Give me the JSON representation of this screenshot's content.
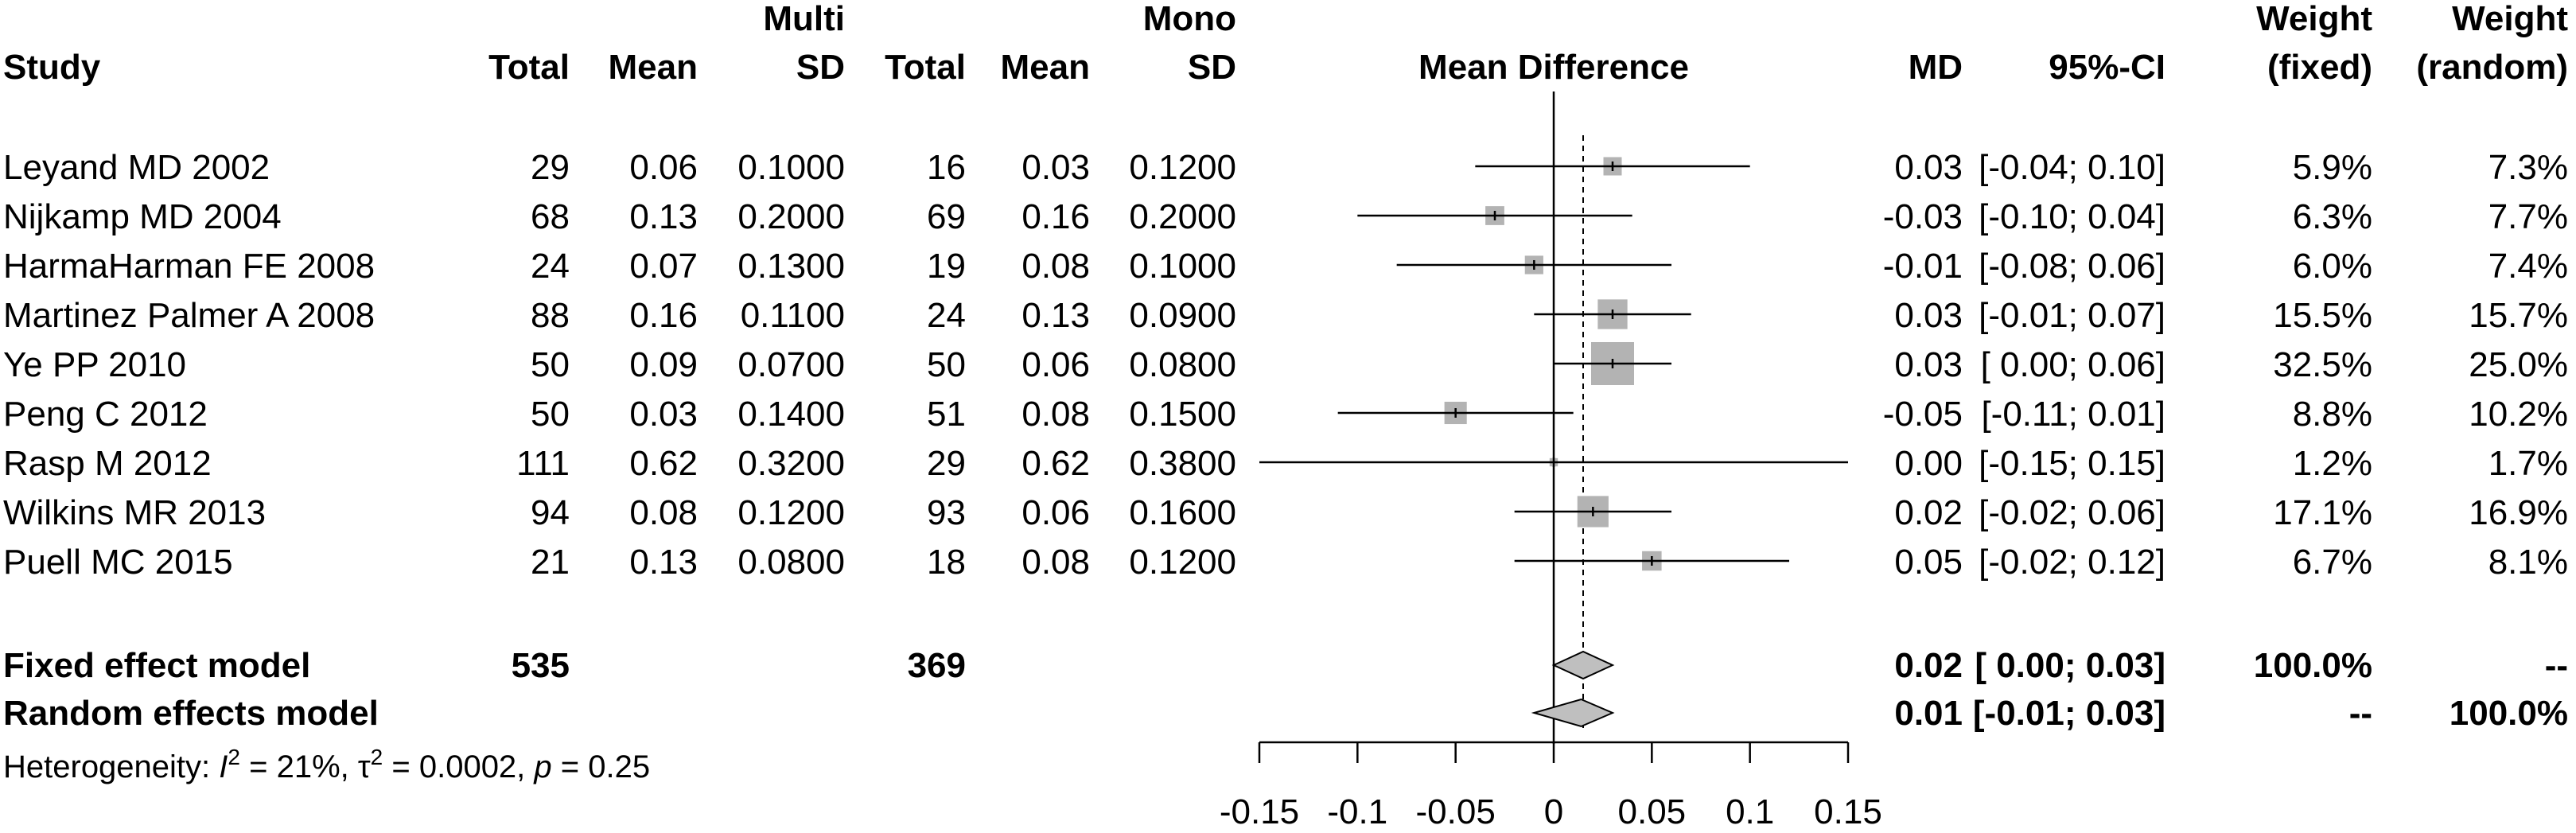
{
  "chart_data": {
    "type": "forest",
    "groups": [
      "Multi",
      "Mono"
    ],
    "columns": {
      "study": "Study",
      "total_multi": "Total",
      "mean_multi": "Mean",
      "sd_multi": "SD",
      "total_mono": "Total",
      "mean_mono": "Mean",
      "sd_mono": "SD",
      "effect": "Mean Difference",
      "md": "MD",
      "ci": "95%-CI",
      "weight_fixed": [
        "Weight",
        "(fixed)"
      ],
      "weight_random": [
        "Weight",
        "(random)"
      ]
    },
    "studies": [
      {
        "study": "Leyand MD 2002",
        "n1": "29",
        "m1": "0.06",
        "sd1": "0.1000",
        "n2": "16",
        "m2": "0.03",
        "sd2": "0.1200",
        "md_text": "0.03",
        "ci_text": "[-0.04; 0.10]",
        "wf": "5.9%",
        "wr": "7.3%",
        "md": 0.03,
        "lo": -0.04,
        "hi": 0.1,
        "weight": 5.9
      },
      {
        "study": "Nijkamp MD 2004",
        "n1": "68",
        "m1": "0.13",
        "sd1": "0.2000",
        "n2": "69",
        "m2": "0.16",
        "sd2": "0.2000",
        "md_text": "-0.03",
        "ci_text": "[-0.10; 0.04]",
        "wf": "6.3%",
        "wr": "7.7%",
        "md": -0.03,
        "lo": -0.1,
        "hi": 0.04,
        "weight": 6.3
      },
      {
        "study": "HarmaHarman FE 2008",
        "n1": "24",
        "m1": "0.07",
        "sd1": "0.1300",
        "n2": "19",
        "m2": "0.08",
        "sd2": "0.1000",
        "md_text": "-0.01",
        "ci_text": "[-0.08; 0.06]",
        "wf": "6.0%",
        "wr": "7.4%",
        "md": -0.01,
        "lo": -0.08,
        "hi": 0.06,
        "weight": 6.0
      },
      {
        "study": "Martinez Palmer A 2008",
        "n1": "88",
        "m1": "0.16",
        "sd1": "0.1100",
        "n2": "24",
        "m2": "0.13",
        "sd2": "0.0900",
        "md_text": "0.03",
        "ci_text": "[-0.01; 0.07]",
        "wf": "15.5%",
        "wr": "15.7%",
        "md": 0.03,
        "lo": -0.01,
        "hi": 0.07,
        "weight": 15.5
      },
      {
        "study": "Ye PP 2010",
        "n1": "50",
        "m1": "0.09",
        "sd1": "0.0700",
        "n2": "50",
        "m2": "0.06",
        "sd2": "0.0800",
        "md_text": "0.03",
        "ci_text": "[ 0.00; 0.06]",
        "wf": "32.5%",
        "wr": "25.0%",
        "md": 0.03,
        "lo": 0.0,
        "hi": 0.06,
        "weight": 32.5
      },
      {
        "study": "Peng C 2012",
        "n1": "50",
        "m1": "0.03",
        "sd1": "0.1400",
        "n2": "51",
        "m2": "0.08",
        "sd2": "0.1500",
        "md_text": "-0.05",
        "ci_text": "[-0.11; 0.01]",
        "wf": "8.8%",
        "wr": "10.2%",
        "md": -0.05,
        "lo": -0.11,
        "hi": 0.01,
        "weight": 8.8
      },
      {
        "study": "Rasp M 2012",
        "n1": "111",
        "m1": "0.62",
        "sd1": "0.3200",
        "n2": "29",
        "m2": "0.62",
        "sd2": "0.3800",
        "md_text": "0.00",
        "ci_text": "[-0.15; 0.15]",
        "wf": "1.2%",
        "wr": "1.7%",
        "md": 0.0,
        "lo": -0.15,
        "hi": 0.15,
        "weight": 1.2
      },
      {
        "study": "Wilkins MR 2013",
        "n1": "94",
        "m1": "0.08",
        "sd1": "0.1200",
        "n2": "93",
        "m2": "0.06",
        "sd2": "0.1600",
        "md_text": "0.02",
        "ci_text": "[-0.02; 0.06]",
        "wf": "17.1%",
        "wr": "16.9%",
        "md": 0.02,
        "lo": -0.02,
        "hi": 0.06,
        "weight": 17.1
      },
      {
        "study": "Puell MC 2015",
        "n1": "21",
        "m1": "0.13",
        "sd1": "0.0800",
        "n2": "18",
        "m2": "0.08",
        "sd2": "0.1200",
        "md_text": "0.05",
        "ci_text": "[-0.02; 0.12]",
        "wf": "6.7%",
        "wr": "8.1%",
        "md": 0.05,
        "lo": -0.02,
        "hi": 0.12,
        "weight": 6.7
      }
    ],
    "summary": [
      {
        "label": "Fixed effect model",
        "n1": "535",
        "n2": "369",
        "md_text": "0.02",
        "ci_text": "[ 0.00; 0.03]",
        "wf": "100.0%",
        "wr": "--",
        "md": 0.015,
        "lo": 0.0,
        "hi": 0.03
      },
      {
        "label": "Random effects model",
        "n1": "",
        "n2": "",
        "md_text": "0.01",
        "ci_text": "[-0.01; 0.03]",
        "wf": "--",
        "wr": "100.0%",
        "md": 0.014,
        "lo": -0.01,
        "hi": 0.03
      }
    ],
    "heterogeneity": {
      "prefix": "Heterogeneity: ",
      "I2": "21%",
      "tau2": "0.0002",
      "p": "0.25"
    },
    "x_axis": {
      "range": [
        -0.15,
        0.15
      ],
      "ticks": [
        -0.15,
        -0.1,
        -0.05,
        0,
        0.05,
        0.1,
        0.15
      ],
      "tick_labels": [
        "-0.15",
        "-0.1",
        "-0.05",
        "0",
        "0.05",
        "0.1",
        "0.15"
      ]
    },
    "reference_line": 0,
    "pooled_line": 0.015,
    "colors": {
      "box": "#b3b3b3",
      "diamond": "#bfbfbf",
      "line": "#000000"
    }
  }
}
